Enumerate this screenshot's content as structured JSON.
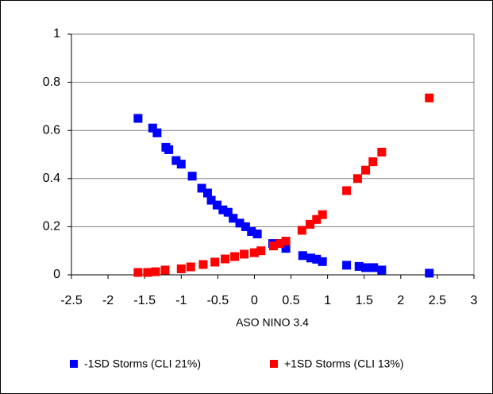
{
  "chart_data": {
    "type": "scatter",
    "x_label": "ASO  NINO 3.4",
    "xlim": [
      -2.5,
      3
    ],
    "xticks": [
      -2.5,
      -2,
      -1.5,
      -1,
      -0.5,
      0,
      0.5,
      1,
      1.5,
      2,
      2.5,
      3
    ],
    "ylim": [
      0,
      1
    ],
    "yticks": [
      0,
      0.2,
      0.4,
      0.6,
      0.8,
      1
    ],
    "grid": true,
    "legend_position": "bottom",
    "series": [
      {
        "name": "-1SD Storms (CLI 21%)",
        "color": "#0000ff",
        "x": [
          -1.59,
          -1.39,
          -1.33,
          -1.21,
          -1.17,
          -1.07,
          -1.0,
          -0.85,
          -0.72,
          -0.64,
          -0.59,
          -0.51,
          -0.43,
          -0.36,
          -0.29,
          -0.2,
          -0.12,
          -0.04,
          0.04,
          0.25,
          0.35,
          0.43,
          0.66,
          0.77,
          0.85,
          0.93,
          1.26,
          1.43,
          1.52,
          1.63,
          1.74,
          2.39
        ],
        "values": [
          0.65,
          0.61,
          0.59,
          0.53,
          0.52,
          0.475,
          0.46,
          0.41,
          0.36,
          0.34,
          0.31,
          0.29,
          0.27,
          0.26,
          0.235,
          0.215,
          0.2,
          0.18,
          0.17,
          0.13,
          0.13,
          0.11,
          0.08,
          0.07,
          0.065,
          0.055,
          0.04,
          0.035,
          0.03,
          0.03,
          0.02,
          0.007
        ]
      },
      {
        "name": "+1SD Storms (CLI 13%)",
        "color": "#ff0000",
        "x": [
          -1.59,
          -1.46,
          -1.35,
          -1.22,
          -1.0,
          -0.87,
          -0.7,
          -0.54,
          -0.4,
          -0.27,
          -0.14,
          0.0,
          0.09,
          0.26,
          0.35,
          0.43,
          0.65,
          0.76,
          0.85,
          0.93,
          1.26,
          1.41,
          1.52,
          1.62,
          1.74,
          2.39
        ],
        "values": [
          0.01,
          0.01,
          0.013,
          0.02,
          0.025,
          0.033,
          0.043,
          0.053,
          0.066,
          0.076,
          0.086,
          0.092,
          0.1,
          0.12,
          0.13,
          0.14,
          0.185,
          0.21,
          0.23,
          0.25,
          0.35,
          0.4,
          0.435,
          0.47,
          0.51,
          0.735
        ]
      }
    ]
  }
}
